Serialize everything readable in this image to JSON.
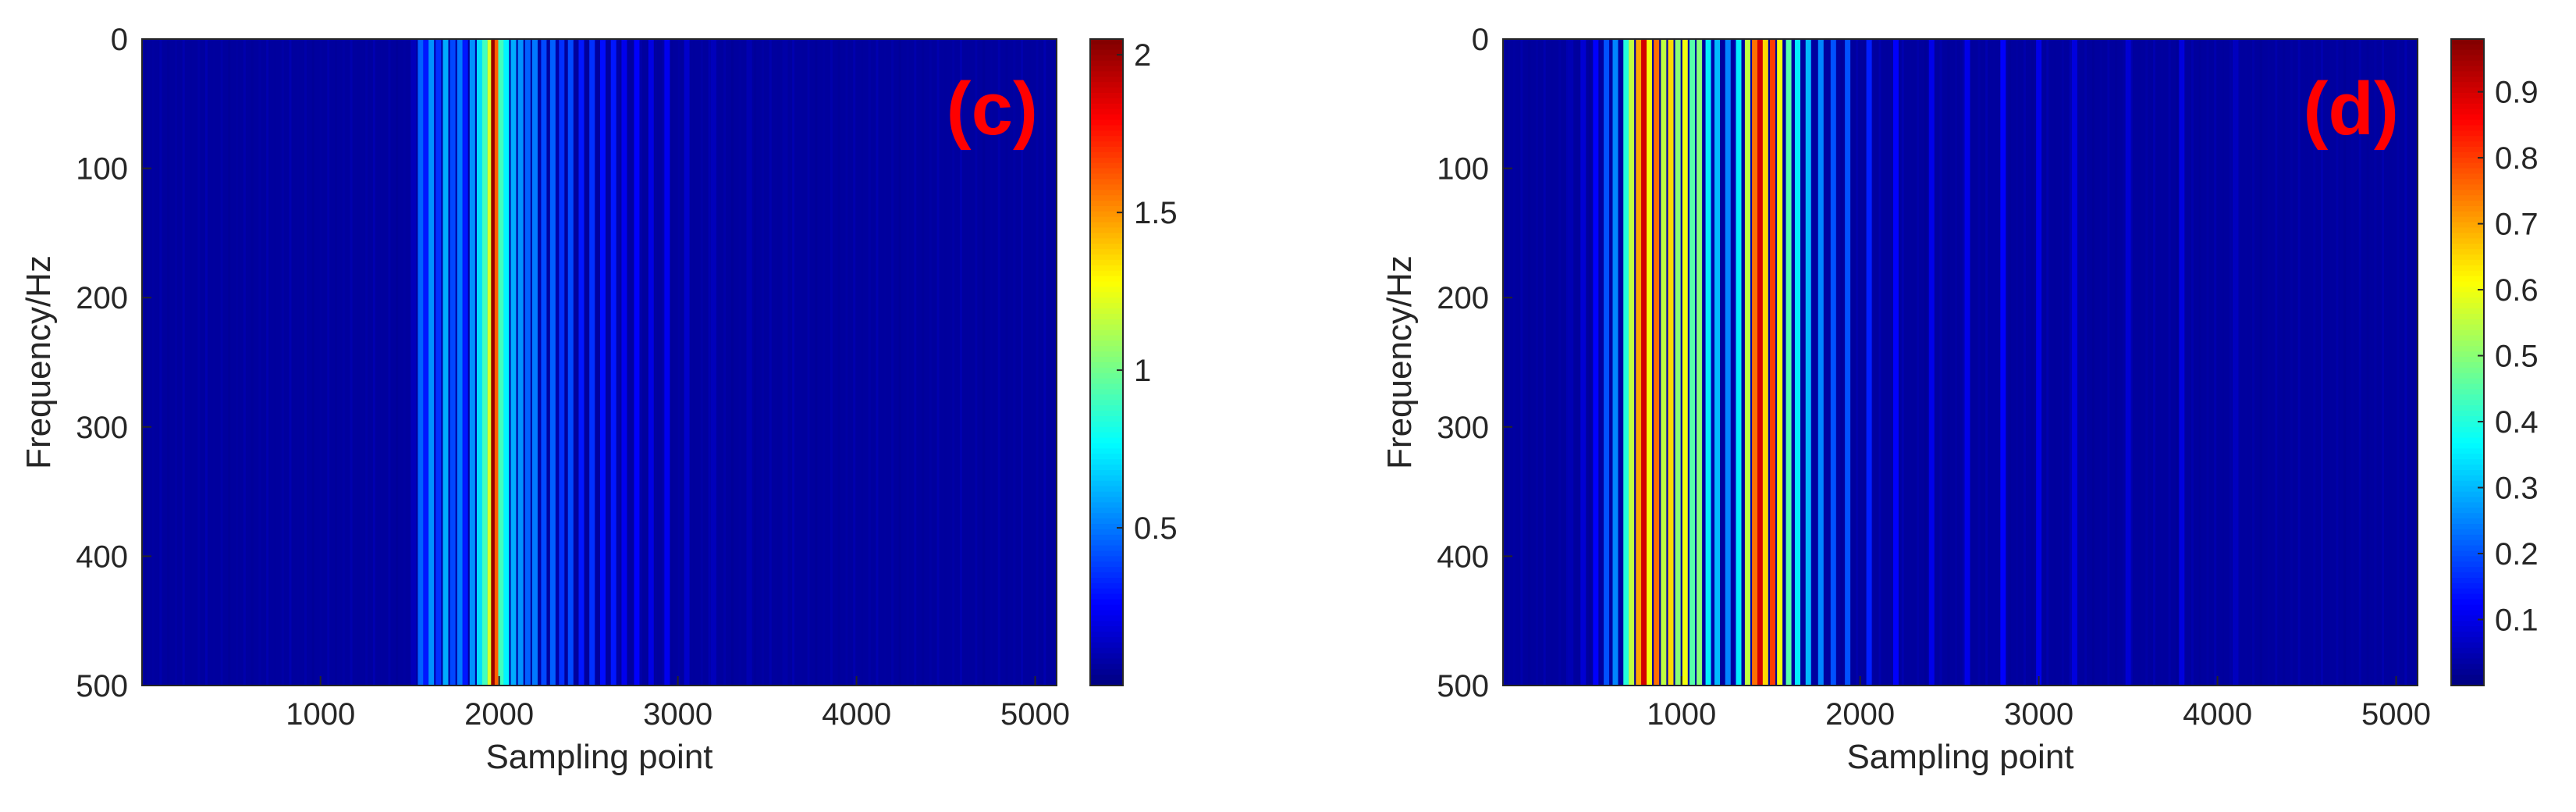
{
  "chart_data": [
    {
      "type": "heatmap",
      "panel_label": "(c)",
      "xlabel": "Sampling point",
      "ylabel": "Frequency/Hz",
      "xlim": [
        1,
        5120
      ],
      "ylim": [
        0,
        500
      ],
      "y_direction": "reversed",
      "x_ticks": [
        1000,
        2000,
        3000,
        4000,
        5000
      ],
      "y_ticks": [
        0,
        100,
        200,
        300,
        400,
        500
      ],
      "colormap": "jet",
      "clim": [
        0,
        2.05
      ],
      "colorbar_ticks": [
        0.5,
        1,
        1.5,
        2
      ],
      "bands": [
        {
          "x": 1520,
          "v": 0.12
        },
        {
          "x": 1560,
          "v": 0.45
        },
        {
          "x": 1590,
          "v": 0.3
        },
        {
          "x": 1620,
          "v": 0.55
        },
        {
          "x": 1660,
          "v": 0.35
        },
        {
          "x": 1700,
          "v": 0.6
        },
        {
          "x": 1740,
          "v": 0.4
        },
        {
          "x": 1780,
          "v": 0.5
        },
        {
          "x": 1810,
          "v": 0.3
        },
        {
          "x": 1850,
          "v": 0.55
        },
        {
          "x": 1890,
          "v": 0.7
        },
        {
          "x": 1920,
          "v": 0.9
        },
        {
          "x": 1950,
          "v": 1.2
        },
        {
          "x": 1970,
          "v": 2.0
        },
        {
          "x": 1990,
          "v": 1.6
        },
        {
          "x": 2010,
          "v": 0.9
        },
        {
          "x": 2040,
          "v": 0.75
        },
        {
          "x": 2080,
          "v": 0.6
        },
        {
          "x": 2120,
          "v": 0.55
        },
        {
          "x": 2160,
          "v": 0.45
        },
        {
          "x": 2200,
          "v": 0.5
        },
        {
          "x": 2250,
          "v": 0.4
        },
        {
          "x": 2300,
          "v": 0.45
        },
        {
          "x": 2350,
          "v": 0.35
        },
        {
          "x": 2400,
          "v": 0.4
        },
        {
          "x": 2460,
          "v": 0.3
        },
        {
          "x": 2520,
          "v": 0.35
        },
        {
          "x": 2580,
          "v": 0.28
        },
        {
          "x": 2640,
          "v": 0.3
        },
        {
          "x": 2700,
          "v": 0.22
        },
        {
          "x": 2770,
          "v": 0.25
        },
        {
          "x": 2850,
          "v": 0.2
        },
        {
          "x": 2940,
          "v": 0.22
        },
        {
          "x": 3050,
          "v": 0.15
        },
        {
          "x": 3200,
          "v": 0.12
        },
        {
          "x": 3400,
          "v": 0.1
        },
        {
          "x": 3600,
          "v": 0.08
        }
      ]
    },
    {
      "type": "heatmap",
      "panel_label": "(d)",
      "xlabel": "Sampling point",
      "ylabel": "Frequency/Hz",
      "xlim": [
        1,
        5120
      ],
      "ylim": [
        0,
        500
      ],
      "y_direction": "reversed",
      "x_ticks": [
        1000,
        2000,
        3000,
        4000,
        5000
      ],
      "y_ticks": [
        0,
        100,
        200,
        300,
        400,
        500
      ],
      "colormap": "jet",
      "clim": [
        0,
        0.98
      ],
      "colorbar_ticks": [
        0.1,
        0.2,
        0.3,
        0.4,
        0.5,
        0.6,
        0.7,
        0.8,
        0.9
      ],
      "bands": [
        {
          "x": 380,
          "v": 0.05
        },
        {
          "x": 450,
          "v": 0.08
        },
        {
          "x": 520,
          "v": 0.12
        },
        {
          "x": 580,
          "v": 0.2
        },
        {
          "x": 630,
          "v": 0.25
        },
        {
          "x": 690,
          "v": 0.4
        },
        {
          "x": 720,
          "v": 0.55
        },
        {
          "x": 760,
          "v": 0.7
        },
        {
          "x": 790,
          "v": 0.9
        },
        {
          "x": 820,
          "v": 0.6
        },
        {
          "x": 860,
          "v": 0.75
        },
        {
          "x": 900,
          "v": 0.55
        },
        {
          "x": 940,
          "v": 0.65
        },
        {
          "x": 980,
          "v": 0.5
        },
        {
          "x": 1020,
          "v": 0.6
        },
        {
          "x": 1060,
          "v": 0.45
        },
        {
          "x": 1100,
          "v": 0.5
        },
        {
          "x": 1150,
          "v": 0.35
        },
        {
          "x": 1200,
          "v": 0.3
        },
        {
          "x": 1260,
          "v": 0.25
        },
        {
          "x": 1320,
          "v": 0.35
        },
        {
          "x": 1370,
          "v": 0.55
        },
        {
          "x": 1410,
          "v": 0.75
        },
        {
          "x": 1440,
          "v": 0.9
        },
        {
          "x": 1470,
          "v": 0.65
        },
        {
          "x": 1510,
          "v": 0.8
        },
        {
          "x": 1550,
          "v": 0.6
        },
        {
          "x": 1600,
          "v": 0.45
        },
        {
          "x": 1650,
          "v": 0.35
        },
        {
          "x": 1710,
          "v": 0.3
        },
        {
          "x": 1780,
          "v": 0.25
        },
        {
          "x": 1850,
          "v": 0.2
        },
        {
          "x": 1930,
          "v": 0.2
        },
        {
          "x": 2050,
          "v": 0.15
        },
        {
          "x": 2200,
          "v": 0.12
        },
        {
          "x": 2400,
          "v": 0.1
        },
        {
          "x": 2600,
          "v": 0.1
        },
        {
          "x": 2800,
          "v": 0.12
        },
        {
          "x": 3000,
          "v": 0.1
        },
        {
          "x": 3200,
          "v": 0.09
        },
        {
          "x": 3500,
          "v": 0.08
        },
        {
          "x": 3800,
          "v": 0.09
        },
        {
          "x": 4100,
          "v": 0.06
        }
      ]
    }
  ]
}
